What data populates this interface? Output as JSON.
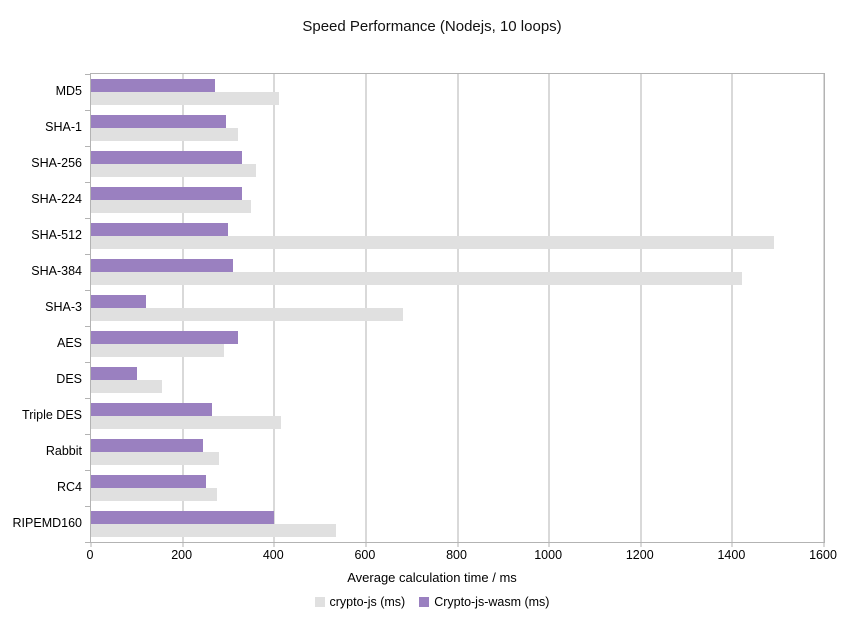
{
  "chart_data": {
    "type": "bar",
    "orientation": "horizontal",
    "title": "Speed Performance (Nodejs, 10 loops)",
    "xlabel": "Average calculation time / ms",
    "ylabel": "",
    "categories": [
      "MD5",
      "SHA-1",
      "SHA-256",
      "SHA-224",
      "SHA-512",
      "SHA-384",
      "SHA-3",
      "AES",
      "DES",
      "Triple DES",
      "Rabbit",
      "RC4",
      "RIPEMD160"
    ],
    "series": [
      {
        "name": "crypto-js (ms)",
        "color": "#e0e0e0",
        "values": [
          410,
          320,
          360,
          350,
          1490,
          1420,
          680,
          290,
          155,
          415,
          280,
          275,
          535
        ]
      },
      {
        "name": "Crypto-js-wasm (ms)",
        "color": "#9a80c0",
        "values": [
          270,
          295,
          330,
          330,
          300,
          310,
          120,
          320,
          100,
          265,
          245,
          250,
          400
        ]
      }
    ],
    "xlim": [
      0,
      1600
    ],
    "xticks": [
      0,
      200,
      400,
      600,
      800,
      1000,
      1200,
      1400,
      1600
    ],
    "grid": true,
    "gridline_color": "#b3b3b3",
    "legend_position": "bottom",
    "background_color": "#ffffff"
  }
}
